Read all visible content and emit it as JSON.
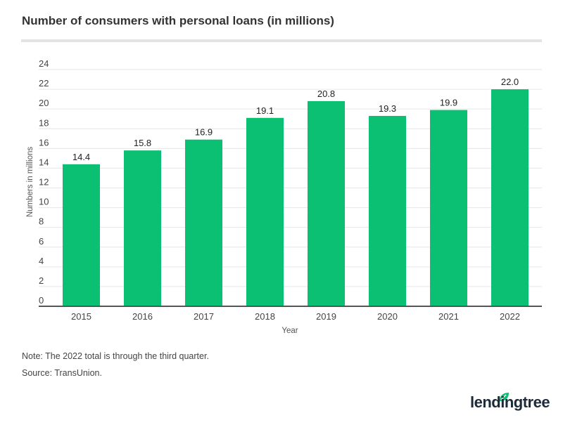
{
  "chart_data": {
    "type": "bar",
    "title": "Number of consumers with personal loans (in millions)",
    "xlabel": "Year",
    "ylabel": "Numbers in millions",
    "categories": [
      "2015",
      "2016",
      "2017",
      "2018",
      "2019",
      "2020",
      "2021",
      "2022"
    ],
    "values": [
      14.4,
      15.8,
      16.9,
      19.1,
      20.8,
      19.3,
      19.9,
      22.0
    ],
    "data_labels": [
      "14.4",
      "15.8",
      "16.9",
      "19.1",
      "20.8",
      "19.3",
      "19.9",
      "22.0"
    ],
    "ylim": [
      0,
      24
    ],
    "yticks": [
      "0",
      "2",
      "4",
      "6",
      "8",
      "10",
      "12",
      "14",
      "16",
      "18",
      "20",
      "22",
      "24"
    ],
    "grid": true,
    "bar_color": "#0bbf73"
  },
  "notes": {
    "note": "Note: The 2022 total is through the third quarter.",
    "source": "Source: TransUnion."
  },
  "logo": {
    "text": "lendingtree",
    "leaf_color": "#0bbf73"
  }
}
